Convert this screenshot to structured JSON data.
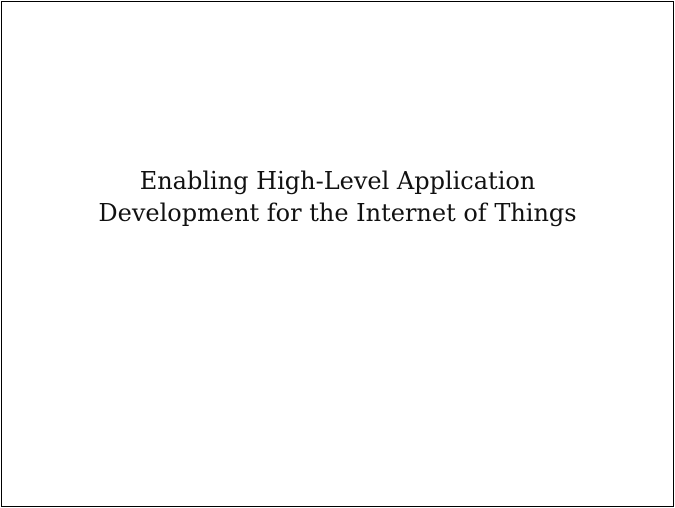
{
  "document": {
    "title_lines": [
      "Enabling High-Level Application",
      "Development for the Internet of Things"
    ]
  },
  "colors": {
    "text": "#111111",
    "border": "#000000",
    "background": "#ffffff"
  }
}
